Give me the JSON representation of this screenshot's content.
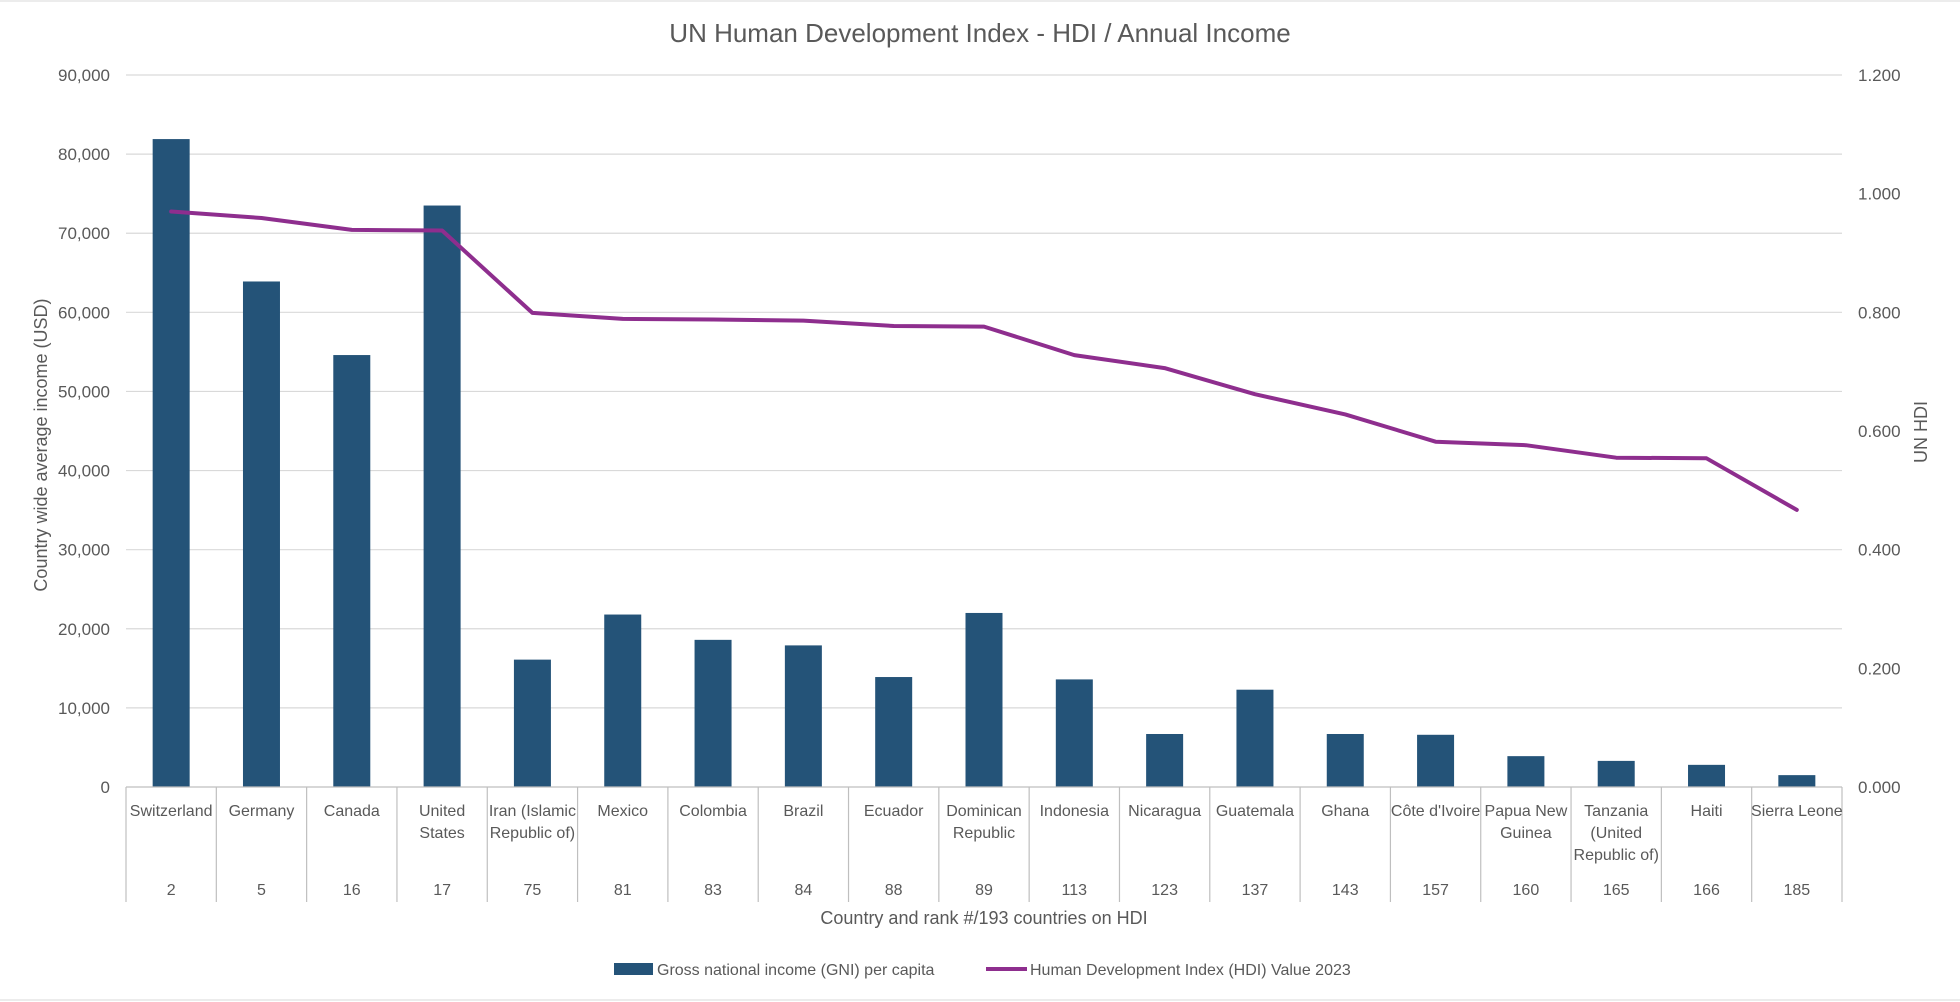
{
  "chart_data": {
    "type": "bar",
    "title": "UN Human Development Index - HDI / Annual Income",
    "xlabel": "Country and rank #/193 countries on HDI",
    "ylabel": "Country wide average income (USD)",
    "y2label": "UN HDI",
    "ylim": [
      0,
      90000
    ],
    "y2lim": [
      0,
      1.2
    ],
    "yticks": [
      "0",
      "10,000",
      "20,000",
      "30,000",
      "40,000",
      "50,000",
      "60,000",
      "70,000",
      "80,000",
      "90,000"
    ],
    "y2ticks": [
      "0.000",
      "0.200",
      "0.400",
      "0.600",
      "0.800",
      "1.000",
      "1.200"
    ],
    "categories": [
      {
        "name": [
          "Switzerland"
        ],
        "rank": "2"
      },
      {
        "name": [
          "Germany"
        ],
        "rank": "5"
      },
      {
        "name": [
          "Canada"
        ],
        "rank": "16"
      },
      {
        "name": [
          "United",
          "States"
        ],
        "rank": "17"
      },
      {
        "name": [
          "Iran (Islamic",
          "Republic of)"
        ],
        "rank": "75"
      },
      {
        "name": [
          "Mexico"
        ],
        "rank": "81"
      },
      {
        "name": [
          "Colombia"
        ],
        "rank": "83"
      },
      {
        "name": [
          "Brazil"
        ],
        "rank": "84"
      },
      {
        "name": [
          "Ecuador"
        ],
        "rank": "88"
      },
      {
        "name": [
          "Dominican",
          "Republic"
        ],
        "rank": "89"
      },
      {
        "name": [
          "Indonesia"
        ],
        "rank": "113"
      },
      {
        "name": [
          "Nicaragua"
        ],
        "rank": "123"
      },
      {
        "name": [
          "Guatemala"
        ],
        "rank": "137"
      },
      {
        "name": [
          "Ghana"
        ],
        "rank": "143"
      },
      {
        "name": [
          "Côte d'Ivoire"
        ],
        "rank": "157"
      },
      {
        "name": [
          "Papua New",
          "Guinea"
        ],
        "rank": "160"
      },
      {
        "name": [
          "Tanzania",
          "(United",
          "Republic of)"
        ],
        "rank": "165"
      },
      {
        "name": [
          "Haiti"
        ],
        "rank": "166"
      },
      {
        "name": [
          "Sierra Leone"
        ],
        "rank": "185"
      }
    ],
    "series": [
      {
        "name": "Gross national income (GNI) per capita",
        "type": "bar",
        "axis": "left",
        "color": "#245378",
        "values": [
          81900,
          63900,
          54600,
          73500,
          16100,
          21800,
          18600,
          17900,
          13900,
          22000,
          13600,
          6700,
          12300,
          6700,
          6600,
          3900,
          3300,
          2800,
          1500
        ]
      },
      {
        "name": "Human Development Index (HDI)  Value 2023",
        "type": "line",
        "axis": "right",
        "color": "#8e2e8e",
        "values": [
          0.97,
          0.959,
          0.939,
          0.938,
          0.799,
          0.789,
          0.788,
          0.786,
          0.777,
          0.776,
          0.728,
          0.706,
          0.662,
          0.628,
          0.582,
          0.576,
          0.555,
          0.554,
          0.467
        ]
      }
    ],
    "legend_position": "bottom",
    "grid": true
  }
}
